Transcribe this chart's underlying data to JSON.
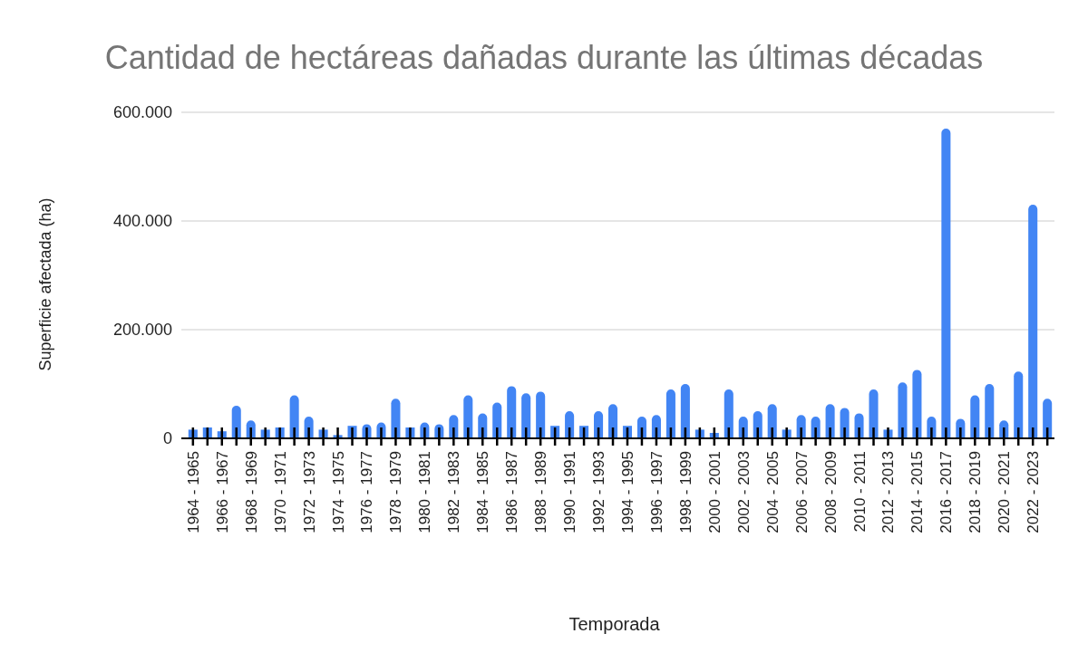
{
  "chart_data": {
    "type": "bar",
    "title": "Cantidad de hectáreas dañadas durante las últimas décadas",
    "xlabel": "Temporada",
    "ylabel": "Superficie afectada (ha)",
    "categories": [
      "1964 - 1965",
      null,
      "1966 - 1967",
      null,
      "1968 - 1969",
      null,
      "1970 - 1971",
      null,
      "1972 - 1973",
      null,
      "1974 - 1975",
      null,
      "1976 - 1977",
      null,
      "1978 - 1979",
      null,
      "1980 - 1981",
      null,
      "1982 - 1983",
      null,
      "1984 - 1985",
      null,
      "1986 - 1987",
      null,
      "1988 - 1989",
      null,
      "1990 - 1991",
      null,
      "1992 - 1993",
      null,
      "1994 - 1995",
      null,
      "1996 - 1997",
      null,
      "1998 - 1999",
      null,
      "2000 - 2001",
      null,
      "2002 - 2003",
      null,
      "2004 - 2005",
      null,
      "2006 - 2007",
      null,
      "2008 - 2009",
      null,
      "2010 - 2011",
      null,
      "2012 - 2013",
      null,
      "2014 - 2015",
      null,
      "2016 - 2017",
      null,
      "2018 - 2019",
      null,
      "2020 - 2021",
      null,
      "2022 - 2023",
      null
    ],
    "values": [
      16000,
      20000,
      13000,
      60000,
      33000,
      16000,
      20000,
      79000,
      40000,
      16000,
      6000,
      23000,
      26000,
      29000,
      73000,
      20000,
      29000,
      26000,
      43000,
      79000,
      46000,
      66000,
      96000,
      83000,
      86000,
      23000,
      50000,
      23000,
      50000,
      63000,
      23000,
      40000,
      43000,
      90000,
      100000,
      16000,
      10000,
      90000,
      40000,
      50000,
      63000,
      16000,
      43000,
      40000,
      63000,
      56000,
      46000,
      90000,
      16000,
      103000,
      126000,
      40000,
      570000,
      36000,
      79000,
      100000,
      33000,
      123000,
      430000,
      73000
    ],
    "color": "#4285f4",
    "ylim": [
      0,
      600000
    ],
    "yticks": [
      0,
      {
        "value": 200000,
        "label": "200.000"
      },
      {
        "value": 400000,
        "label": "400.000"
      },
      {
        "value": 600000,
        "label": "600.000"
      }
    ],
    "grid": "y"
  }
}
